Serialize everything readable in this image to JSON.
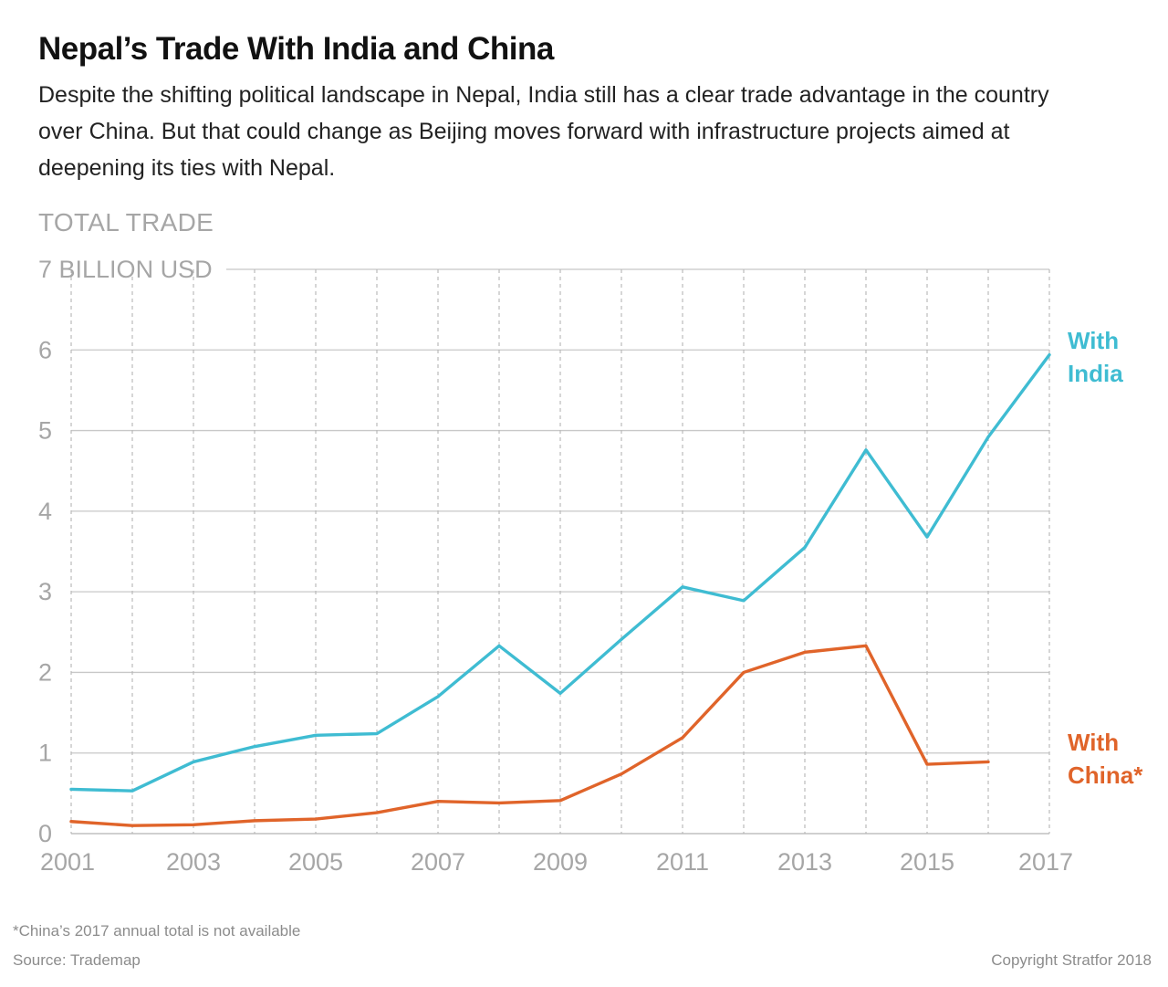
{
  "title": "Nepal’s Trade With India and China",
  "subtitle": "Despite the shifting political landscape in Nepal, India still has a clear trade advantage in the country over China. But that could change as Beijing moves forward with infrastructure projects aimed at deepening its ties with Nepal.",
  "footnote": "*China’s 2017 annual total is not available",
  "source": "Source: Trademap",
  "copyright": "Copyright Stratfor 2018",
  "chart_data": {
    "type": "line",
    "title": "Nepal’s Trade With India and China",
    "ylabel": "TOTAL TRADE",
    "ylim": [
      0,
      7
    ],
    "xlim": [
      2001,
      2017
    ],
    "y_ticks": [
      "0",
      "1",
      "2",
      "3",
      "4",
      "5",
      "6",
      "7 BILLION USD"
    ],
    "x_ticks": [
      "2001",
      "2003",
      "2005",
      "2007",
      "2009",
      "2011",
      "2013",
      "2015",
      "2017"
    ],
    "grid": "horizontal solid, vertical dashed",
    "series": [
      {
        "name": "With India",
        "label_lines": [
          "With",
          "India"
        ],
        "color": "#3fbcd2",
        "x": [
          2001,
          2002,
          2003,
          2004,
          2005,
          2006,
          2007,
          2008,
          2009,
          2010,
          2011,
          2012,
          2013,
          2014,
          2015,
          2016,
          2017
        ],
        "values": [
          0.55,
          0.53,
          0.89,
          1.08,
          1.22,
          1.24,
          1.7,
          2.33,
          1.74,
          2.41,
          3.06,
          2.89,
          3.55,
          4.76,
          3.68,
          4.92,
          5.94
        ]
      },
      {
        "name": "With China*",
        "label_lines": [
          "With",
          "China*"
        ],
        "color": "#e0642a",
        "x": [
          2001,
          2002,
          2003,
          2004,
          2005,
          2006,
          2007,
          2008,
          2009,
          2010,
          2011,
          2012,
          2013,
          2014,
          2015,
          2016
        ],
        "values": [
          0.15,
          0.1,
          0.11,
          0.16,
          0.18,
          0.26,
          0.4,
          0.38,
          0.41,
          0.74,
          1.19,
          2.0,
          2.25,
          2.33,
          0.86,
          0.89
        ]
      }
    ]
  }
}
